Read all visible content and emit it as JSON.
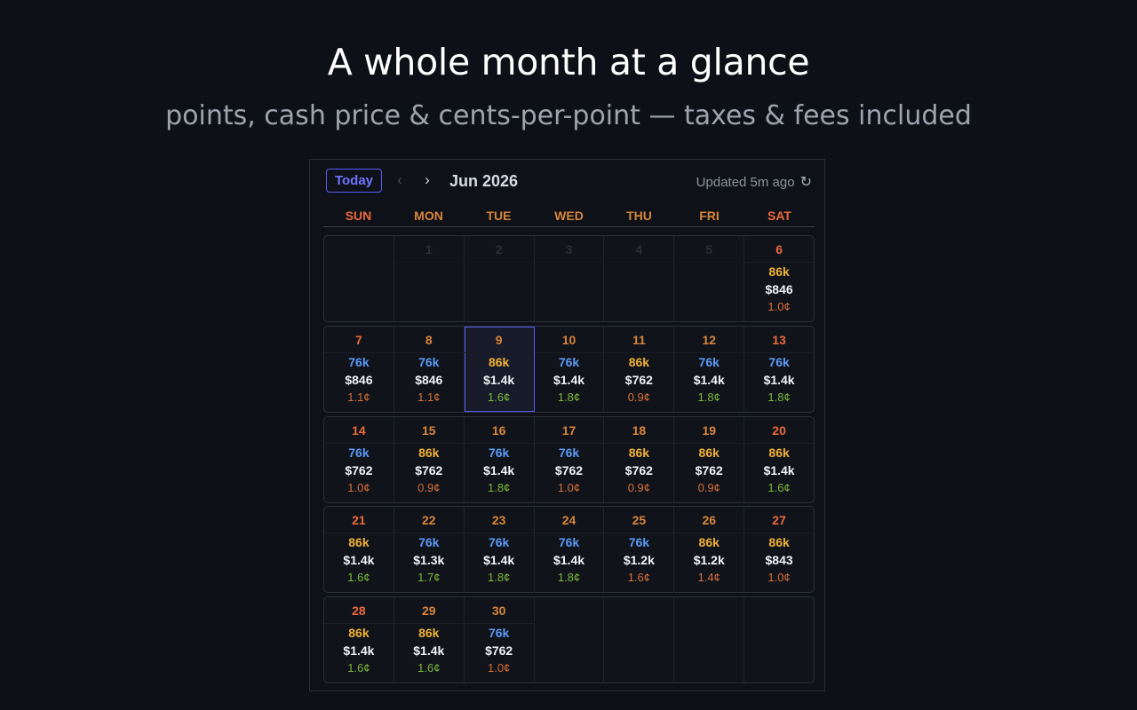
{
  "headline": "A whole month at a glance",
  "subhead": "points, cash price & cents-per-point — taxes & fees included",
  "toolbar": {
    "today_label": "Today",
    "prev_icon": "‹",
    "next_icon": "›",
    "month_label": "Jun 2026",
    "updated_label": "Updated 5m ago",
    "refresh_icon": "↻"
  },
  "weekdays": [
    "SUN",
    "MON",
    "TUE",
    "WED",
    "THU",
    "FRI",
    "SAT"
  ],
  "colors": {
    "accent": "#5a5cf0",
    "points_blue": "#5b9bf6",
    "points_gold": "#f2b233",
    "cpp_good": "#7cb93a",
    "cpp_low": "#d9703a",
    "weekday_header": "#d9853b"
  },
  "weeks": [
    [
      {
        "day": "",
        "ghost": ""
      },
      {
        "day": "1",
        "ghost": true
      },
      {
        "day": "2",
        "ghost": true
      },
      {
        "day": "3",
        "ghost": true
      },
      {
        "day": "4",
        "ghost": true
      },
      {
        "day": "5",
        "ghost": true
      },
      {
        "day": "6",
        "points": "86k",
        "tier": "gold",
        "cash": "$846",
        "cpp": "1.0¢",
        "cpp_tier": "orange"
      }
    ],
    [
      {
        "day": "7",
        "points": "76k",
        "tier": "blue",
        "cash": "$846",
        "cpp": "1.1¢",
        "cpp_tier": "orange"
      },
      {
        "day": "8",
        "points": "76k",
        "tier": "blue",
        "cash": "$846",
        "cpp": "1.1¢",
        "cpp_tier": "orange"
      },
      {
        "day": "9",
        "points": "86k",
        "tier": "gold",
        "cash": "$1.4k",
        "cpp": "1.6¢",
        "cpp_tier": "green",
        "selected": true
      },
      {
        "day": "10",
        "points": "76k",
        "tier": "blue",
        "cash": "$1.4k",
        "cpp": "1.8¢",
        "cpp_tier": "green"
      },
      {
        "day": "11",
        "points": "86k",
        "tier": "gold",
        "cash": "$762",
        "cpp": "0.9¢",
        "cpp_tier": "orange"
      },
      {
        "day": "12",
        "points": "76k",
        "tier": "blue",
        "cash": "$1.4k",
        "cpp": "1.8¢",
        "cpp_tier": "green"
      },
      {
        "day": "13",
        "points": "76k",
        "tier": "blue",
        "cash": "$1.4k",
        "cpp": "1.8¢",
        "cpp_tier": "green"
      }
    ],
    [
      {
        "day": "14",
        "points": "76k",
        "tier": "blue",
        "cash": "$762",
        "cpp": "1.0¢",
        "cpp_tier": "orange"
      },
      {
        "day": "15",
        "points": "86k",
        "tier": "gold",
        "cash": "$762",
        "cpp": "0.9¢",
        "cpp_tier": "orange"
      },
      {
        "day": "16",
        "points": "76k",
        "tier": "blue",
        "cash": "$1.4k",
        "cpp": "1.8¢",
        "cpp_tier": "green"
      },
      {
        "day": "17",
        "points": "76k",
        "tier": "blue",
        "cash": "$762",
        "cpp": "1.0¢",
        "cpp_tier": "orange"
      },
      {
        "day": "18",
        "points": "86k",
        "tier": "gold",
        "cash": "$762",
        "cpp": "0.9¢",
        "cpp_tier": "orange"
      },
      {
        "day": "19",
        "points": "86k",
        "tier": "gold",
        "cash": "$762",
        "cpp": "0.9¢",
        "cpp_tier": "orange"
      },
      {
        "day": "20",
        "points": "86k",
        "tier": "gold",
        "cash": "$1.4k",
        "cpp": "1.6¢",
        "cpp_tier": "green"
      }
    ],
    [
      {
        "day": "21",
        "points": "86k",
        "tier": "gold",
        "cash": "$1.4k",
        "cpp": "1.6¢",
        "cpp_tier": "green"
      },
      {
        "day": "22",
        "points": "76k",
        "tier": "blue",
        "cash": "$1.3k",
        "cpp": "1.7¢",
        "cpp_tier": "green"
      },
      {
        "day": "23",
        "points": "76k",
        "tier": "blue",
        "cash": "$1.4k",
        "cpp": "1.8¢",
        "cpp_tier": "green"
      },
      {
        "day": "24",
        "points": "76k",
        "tier": "blue",
        "cash": "$1.4k",
        "cpp": "1.8¢",
        "cpp_tier": "green"
      },
      {
        "day": "25",
        "points": "76k",
        "tier": "blue",
        "cash": "$1.2k",
        "cpp": "1.6¢",
        "cpp_tier": "orange"
      },
      {
        "day": "26",
        "points": "86k",
        "tier": "gold",
        "cash": "$1.2k",
        "cpp": "1.4¢",
        "cpp_tier": "orange"
      },
      {
        "day": "27",
        "points": "86k",
        "tier": "gold",
        "cash": "$843",
        "cpp": "1.0¢",
        "cpp_tier": "orange"
      }
    ],
    [
      {
        "day": "28",
        "points": "86k",
        "tier": "gold",
        "cash": "$1.4k",
        "cpp": "1.6¢",
        "cpp_tier": "green"
      },
      {
        "day": "29",
        "points": "86k",
        "tier": "gold",
        "cash": "$1.4k",
        "cpp": "1.6¢",
        "cpp_tier": "green"
      },
      {
        "day": "30",
        "points": "76k",
        "tier": "blue",
        "cash": "$762",
        "cpp": "1.0¢",
        "cpp_tier": "orange"
      },
      {
        "day": ""
      },
      {
        "day": ""
      },
      {
        "day": ""
      },
      {
        "day": ""
      }
    ]
  ]
}
